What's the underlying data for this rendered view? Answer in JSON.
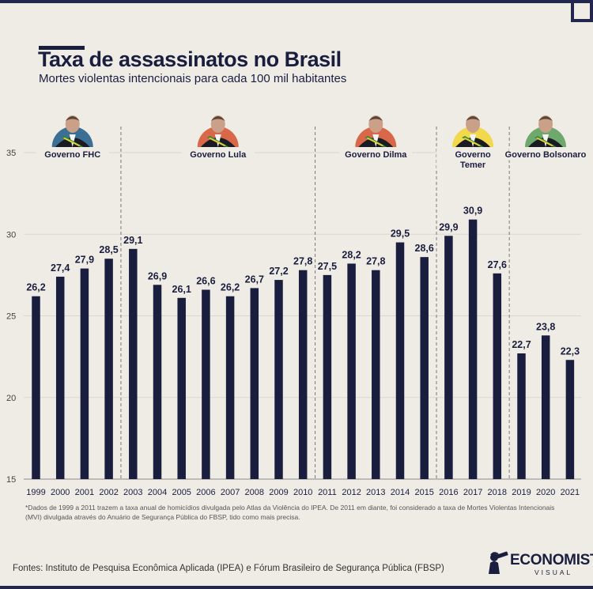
{
  "header": {
    "title": "Taxa de assassinatos no Brasil",
    "subtitle": "Mortes violentas intencionais para cada 100 mil habitantes"
  },
  "colors": {
    "bar": "#1a1e3e",
    "background": "#efece6",
    "grid": "#d9d6cf"
  },
  "chart_data": {
    "type": "bar",
    "title": "Taxa de assassinatos no Brasil",
    "subtitle": "Mortes violentas intencionais para cada 100 mil habitantes",
    "xlabel": "",
    "ylabel": "",
    "ylim": [
      15,
      35
    ],
    "yticks": [
      15,
      20,
      25,
      30,
      35
    ],
    "grid": true,
    "categories": [
      "1999",
      "2000",
      "2001",
      "2002",
      "2003",
      "2004",
      "2005",
      "2006",
      "2007",
      "2008",
      "2009",
      "2010",
      "2011",
      "2012",
      "2013",
      "2014",
      "2015",
      "2016",
      "2017",
      "2018",
      "2019",
      "2020",
      "2021"
    ],
    "values": [
      26.2,
      27.4,
      27.9,
      28.5,
      29.1,
      26.9,
      26.1,
      26.6,
      26.2,
      26.7,
      27.2,
      27.8,
      27.5,
      28.2,
      27.8,
      29.5,
      28.6,
      29.9,
      30.9,
      27.6,
      22.7,
      23.8,
      22.3
    ],
    "value_labels": [
      "26,2",
      "27,4",
      "27,9",
      "28,5",
      "29,1",
      "26,9",
      "26,1",
      "26,6",
      "26,2",
      "26,7",
      "27,2",
      "27,8",
      "27,5",
      "28,2",
      "27,8",
      "29,5",
      "28,6",
      "29,9",
      "30,9",
      "27,6",
      "22,7",
      "23,8",
      "22,3"
    ],
    "governments": [
      {
        "name": "Governo FHC",
        "lines": [
          "Governo FHC"
        ],
        "start": 0,
        "end": 3,
        "icon": "portrait-fhc-icon",
        "color": "#3b6f94"
      },
      {
        "name": "Governo Lula",
        "lines": [
          "Governo Lula"
        ],
        "start": 4,
        "end": 11,
        "icon": "portrait-lula-icon",
        "color": "#d9684a"
      },
      {
        "name": "Governo Dilma",
        "lines": [
          "Governo Dilma"
        ],
        "start": 12,
        "end": 16,
        "icon": "portrait-dilma-icon",
        "color": "#d9684a"
      },
      {
        "name": "Governo Temer",
        "lines": [
          "Governo",
          "Temer"
        ],
        "start": 17,
        "end": 19,
        "icon": "portrait-temer-icon",
        "color": "#f2d84b"
      },
      {
        "name": "Governo Bolsonaro",
        "lines": [
          "Governo Bolsonaro"
        ],
        "start": 19,
        "end": 22,
        "icon": "portrait-bolsonaro-icon",
        "color": "#6fa86c"
      }
    ]
  },
  "footer": {
    "note": "*Dados de 1999 a 2011 trazem a taxa anual de homicídios divulgada pelo Atlas da Violência do IPEA. De 2011 em diante, foi considerado a taxa de Mortes Violentas Intencionais (MVI) divulgada através do Anuário de Segurança Pública do FBSP, tido como mais precisa.",
    "sources": "Fontes: Instituto de Pesquisa Econômica Aplicada (IPEA) e  Fórum Brasileiro de Segurança Pública (FBSP)",
    "logo_line1": "ECONOMISTA",
    "logo_line2": "VISUAL",
    "logo_icon": "telescope-figure-icon"
  }
}
